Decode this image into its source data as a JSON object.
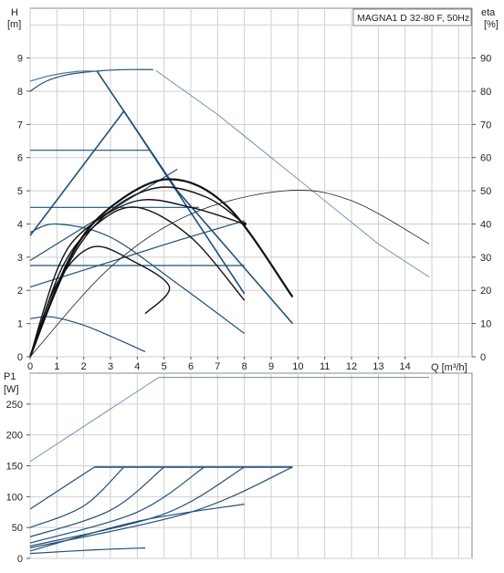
{
  "chart_data": [
    {
      "type": "line",
      "title": "MAGNA1 D 32-80 F, 50Hz",
      "xlabel": "Q [m³/h]",
      "ylabel": "H\n[m]",
      "y2label": "eta\n[%]",
      "xlim": [
        0,
        16.5
      ],
      "ylim": [
        0,
        10.5
      ],
      "y2lim": [
        0,
        105
      ],
      "x_ticks": [
        0,
        1,
        2,
        3,
        4,
        5,
        6,
        7,
        8,
        9,
        10,
        11,
        12,
        13,
        14
      ],
      "y_ticks": [
        0,
        1,
        2,
        3,
        4,
        5,
        6,
        7,
        8,
        9
      ],
      "y2_ticks": [
        0,
        10,
        20,
        30,
        40,
        50,
        60,
        70,
        80,
        90
      ],
      "grid": true,
      "series": [
        {
          "group": "head-max-single",
          "color": "#1f4e79",
          "points": [
            [
              0,
              8.0
            ],
            [
              0.6,
              8.3
            ],
            [
              1.4,
              8.5
            ],
            [
              2.4,
              8.6
            ],
            [
              3.5,
              8.65
            ],
            [
              4.6,
              8.65
            ]
          ]
        },
        {
          "group": "head-max-thin",
          "color": "#5577aa",
          "points": [
            [
              4.7,
              8.62
            ],
            [
              7.0,
              7.3
            ],
            [
              9.0,
              6.0
            ],
            [
              11.0,
              4.7
            ],
            [
              13.0,
              3.4
            ],
            [
              14.9,
              2.4
            ]
          ]
        },
        {
          "group": "head-max-parallel-top",
          "color": "#5577aa",
          "points": [
            [
              0,
              8.3
            ],
            [
              0.8,
              8.48
            ],
            [
              1.8,
              8.6
            ],
            [
              2.5,
              8.6
            ]
          ]
        },
        {
          "group": "const-pressure-max",
          "color": "#1f4e79",
          "points": [
            [
              2.5,
              8.6
            ],
            [
              5.5,
              5.0
            ],
            [
              9.8,
              1.0
            ]
          ]
        },
        {
          "group": "prop-pressure-max",
          "color": "#1f4e79",
          "points": [
            [
              0,
              3.65
            ],
            [
              3.5,
              7.4
            ],
            [
              8.0,
              1.9
            ]
          ]
        },
        {
          "group": "const-curve-6.2",
          "color": "#1f4e79",
          "points": [
            [
              0,
              6.22
            ],
            [
              4.5,
              6.22
            ]
          ]
        },
        {
          "group": "const-curve-4.5",
          "color": "#1f4e79",
          "points": [
            [
              0,
              4.5
            ],
            [
              6.3,
              4.5
            ]
          ]
        },
        {
          "group": "const-curve-2.75",
          "color": "#1f4e79",
          "points": [
            [
              0,
              2.75
            ],
            [
              8.0,
              2.75
            ]
          ]
        },
        {
          "group": "prop-low-1",
          "color": "#1f4e79",
          "points": [
            [
              0,
              2.1
            ],
            [
              5.5,
              3.5
            ],
            [
              8.0,
              4.1
            ]
          ]
        },
        {
          "group": "prop-low-2",
          "color": "#1f4e79",
          "points": [
            [
              0,
              2.9
            ],
            [
              5.5,
              5.65
            ]
          ]
        },
        {
          "group": "speed-curve-high",
          "color": "#1f4e79",
          "points": [
            [
              0,
              3.75
            ],
            [
              1.0,
              4.0
            ],
            [
              3.0,
              3.6
            ],
            [
              5.5,
              2.2
            ],
            [
              8.0,
              0.7
            ]
          ]
        },
        {
          "group": "speed-curve-low",
          "color": "#1f4e79",
          "points": [
            [
              0,
              1.15
            ],
            [
              0.8,
              1.2
            ],
            [
              2.0,
              0.95
            ],
            [
              3.2,
              0.55
            ],
            [
              4.3,
              0.15
            ]
          ]
        },
        {
          "group": "efficiency-1",
          "color": "#111111",
          "points": [
            [
              0,
              0
            ],
            [
              1.5,
              30
            ],
            [
              3.0,
              45
            ],
            [
              5.2,
              53.5
            ],
            [
              7.4,
              45
            ],
            [
              9.8,
              18
            ]
          ]
        },
        {
          "group": "efficiency-2",
          "color": "#111111",
          "points": [
            [
              0,
              0
            ],
            [
              1.5,
              29
            ],
            [
              3.0,
              44
            ],
            [
              4.8,
              51
            ],
            [
              6.6,
              48
            ],
            [
              8.0,
              40
            ]
          ]
        },
        {
          "group": "efficiency-3",
          "color": "#111111",
          "points": [
            [
              0,
              0
            ],
            [
              1.2,
              27
            ],
            [
              2.5,
              40
            ],
            [
              4.0,
              45
            ],
            [
              6.0,
              36
            ],
            [
              8.0,
              17
            ]
          ]
        },
        {
          "group": "efficiency-4",
          "color": "#111111",
          "points": [
            [
              0,
              0
            ],
            [
              1.0,
              22
            ],
            [
              2.3,
              33
            ],
            [
              3.8,
              29
            ],
            [
              5.2,
              21
            ],
            [
              4.3,
              13
            ]
          ]
        },
        {
          "group": "efficiency-5",
          "color": "#111111",
          "points": [
            [
              0,
              0
            ],
            [
              1.0,
              26
            ],
            [
              2.0,
              38
            ],
            [
              4.0,
              47
            ],
            [
              6.0,
              45
            ],
            [
              8.0,
              40
            ]
          ]
        },
        {
          "group": "efficiency-thin",
          "color": "#222222",
          "points": [
            [
              0,
              0
            ],
            [
              3.0,
              27
            ],
            [
              6.0,
              43
            ],
            [
              9.5,
              50
            ],
            [
              12.0,
              47
            ],
            [
              14.9,
              34
            ]
          ]
        }
      ]
    },
    {
      "type": "line",
      "xlabel": "",
      "ylabel": "P1\n[W]",
      "xlim": [
        0,
        16.5
      ],
      "ylim": [
        0,
        300
      ],
      "y_ticks": [
        0,
        50,
        100,
        150,
        200,
        250
      ],
      "grid": true,
      "series": [
        {
          "group": "power-max-thin",
          "color": "#5577aa",
          "points": [
            [
              0,
              157
            ],
            [
              4.8,
              293
            ],
            [
              14.9,
              293
            ]
          ]
        },
        {
          "group": "power-flat-max",
          "color": "#1f4e79",
          "points": [
            [
              2.4,
              148
            ],
            [
              9.8,
              148
            ]
          ]
        },
        {
          "group": "power-1",
          "color": "#1f4e79",
          "points": [
            [
              0,
              80
            ],
            [
              2.4,
              148
            ]
          ]
        },
        {
          "group": "power-2",
          "color": "#1f4e79",
          "points": [
            [
              0,
              50
            ],
            [
              2.0,
              85
            ],
            [
              3.5,
              148
            ]
          ]
        },
        {
          "group": "power-3",
          "color": "#1f4e79",
          "points": [
            [
              0,
              35
            ],
            [
              3.0,
              78
            ],
            [
              5.0,
              148
            ]
          ]
        },
        {
          "group": "power-4",
          "color": "#1f4e79",
          "points": [
            [
              0,
              25
            ],
            [
              4.0,
              75
            ],
            [
              6.5,
              148
            ]
          ]
        },
        {
          "group": "power-5",
          "color": "#1f4e79",
          "points": [
            [
              0,
              20
            ],
            [
              5.0,
              72
            ],
            [
              8.0,
              148
            ]
          ]
        },
        {
          "group": "power-6",
          "color": "#1f4e79",
          "points": [
            [
              0,
              17
            ],
            [
              6.0,
              75
            ],
            [
              9.8,
              148
            ]
          ]
        },
        {
          "group": "power-7",
          "color": "#1f4e79",
          "points": [
            [
              0,
              12
            ],
            [
              4.0,
              60
            ],
            [
              8.0,
              88
            ]
          ]
        },
        {
          "group": "power-8",
          "color": "#1f4e79",
          "points": [
            [
              0,
              8
            ],
            [
              2.5,
              14
            ],
            [
              4.3,
              17
            ]
          ]
        }
      ]
    }
  ]
}
